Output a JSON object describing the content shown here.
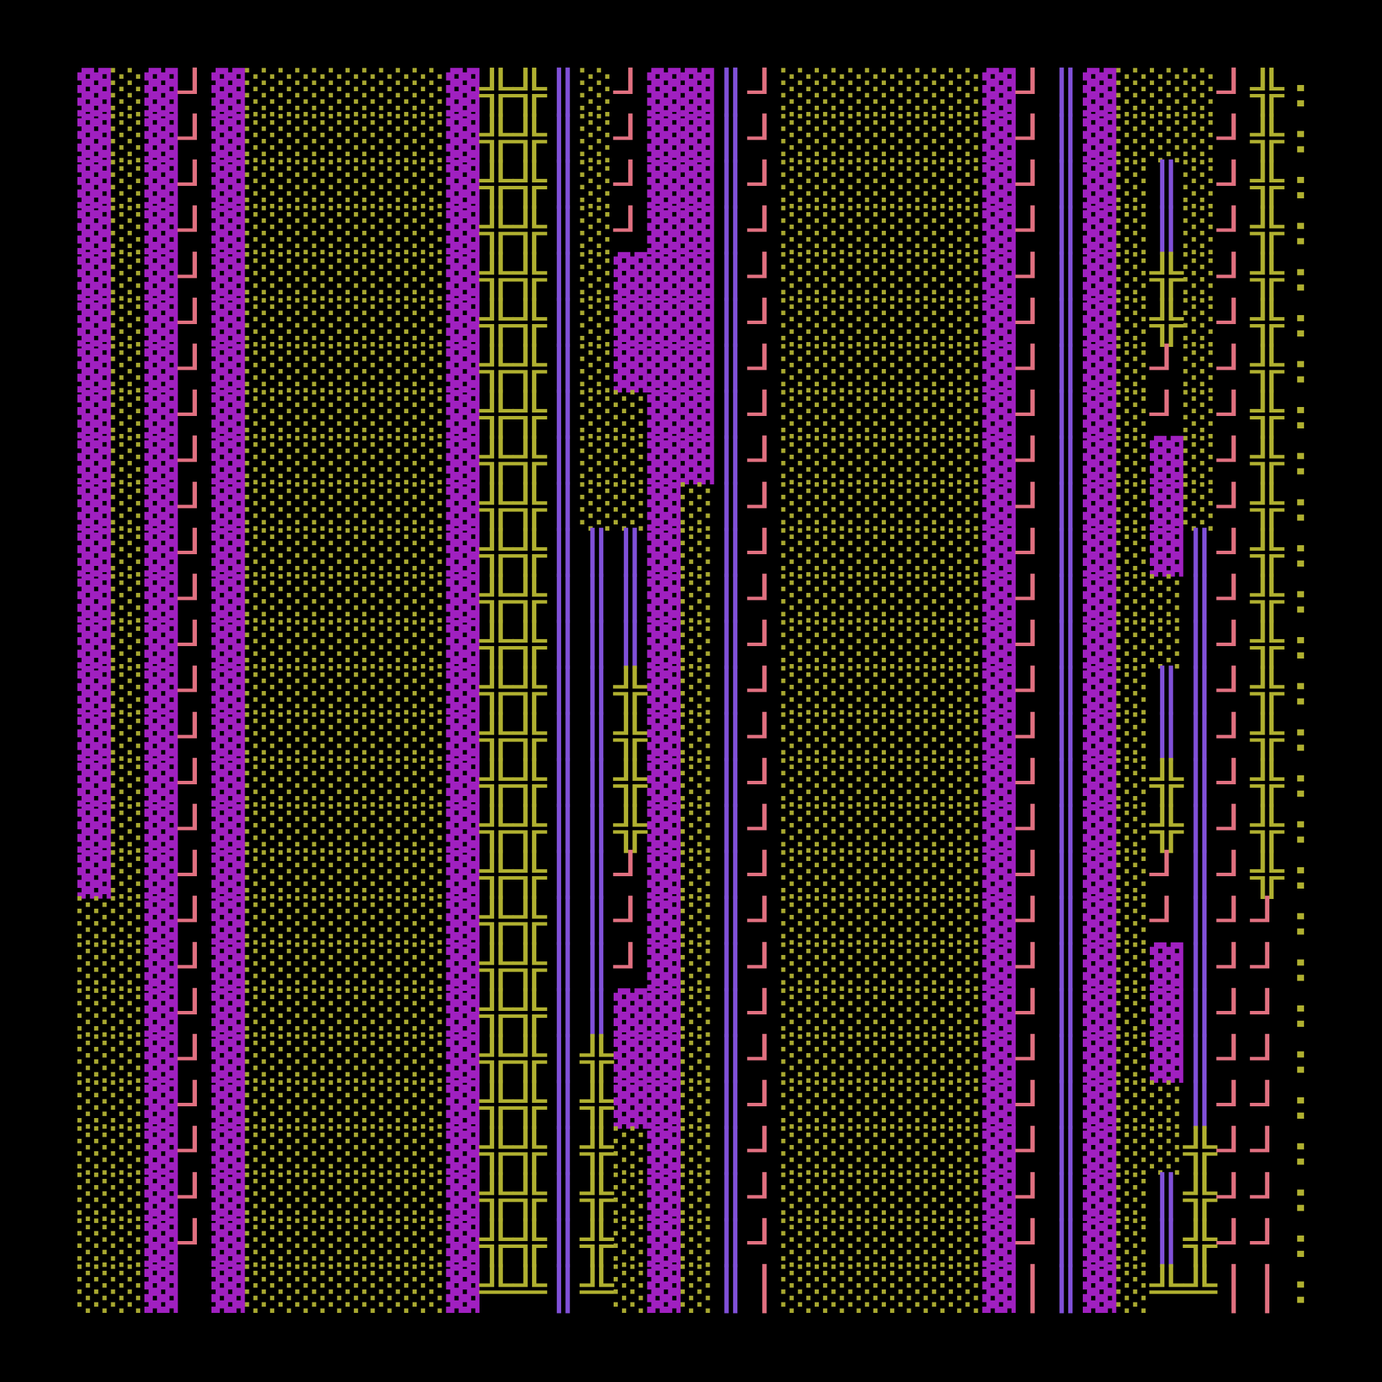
{
  "rows": [
    "▓░▓┘▓░░░░░░▓╬╬║░┘▓▓║┘░░░░░░▓┘║▓░░░┘╬:",
    "▓░▓┘▓░░░░░░▓╬╬║░┘▓▓║┘░░░░░░▓┘║▓░░░┘╬:",
    "▓░▓┘▓░░░░░░▓╬╬║░┘▓▓║┘░░░░░░▓┘║▓░║░┘╬:",
    "▓░▓┘▓░░░░░░▓╬╬║░┘▓▓║┘░░░░░░▓┘║▓░║░┘╬:",
    "▓░▓┘▓░░░░░░▓╬╬║░▓▓▓║┘░░░░░░▓┘║▓░╬░┘╬:",
    "▓░▓┘▓░░░░░░▓╬╬║░▓▓▓║┘░░░░░░▓┘║▓░╬░┘╬:",
    "▓░▓┘▓░░░░░░▓╬╬║░▓▓▓║┘░░░░░░▓┘║▓░┘░┘╬:",
    "▓░▓┘▓░░░░░░▓╬╬║░░▓▓║┘░░░░░░▓┘║▓░┘░┘╬:",
    "▓░▓┘▓░░░░░░▓╬╬║░░▓▓║┘░░░░░░▓┘║▓░▓░┘╬:",
    "▓░▓┘▓░░░░░░▓╬╬║░░▓░║┘░░░░░░▓┘║▓░▓░┘╬:",
    "▓░▓┘▓░░░░░░▓╬╬║║║▓░║┘░░░░░░▓┘║▓░▓║┘╬:",
    "▓░▓┘▓░░░░░░▓╬╬║║║▓░║┘░░░░░░▓┘║▓░░║┘╬:",
    "▓░▓┘▓░░░░░░▓╬╬║║║▓░║┘░░░░░░▓┘║▓░░║┘╬:",
    "▓░▓┘▓░░░░░░▓╬╬║║╬▓░║┘░░░░░░▓┘║▓░║║┘╬:",
    "▓░▓┘▓░░░░░░▓╬╬║║╬▓░║┘░░░░░░▓┘║▓░║║┘╬:",
    "▓░▓┘▓░░░░░░▓╬╬║║╬▓░║┘░░░░░░▓┘║▓░╬║┘╬:",
    "▓░▓┘▓░░░░░░▓╬╬║║╬▓░║┘░░░░░░▓┘║▓░╬║┘╬:",
    "▓░▓┘▓░░░░░░▓╬╬║║┘▓░║┘░░░░░░▓┘║▓░┘║┘╬:",
    "░░▓┘▓░░░░░░▓╬╬║║┘▓░║┘░░░░░░▓┘║▓░┘║┘┘:",
    "░░▓┘▓░░░░░░▓╬╬║║┘▓░║┘░░░░░░▓┘║▓░▓║┘┘:",
    "░░▓┘▓░░░░░░▓╬╬║║▓▓░║┘░░░░░░▓┘║▓░▓║┘┘:",
    "░░▓┘▓░░░░░░▓╬╬║╬▓▓░║┘░░░░░░▓┘║▓░▓║┘┘:",
    "░░▓┘▓░░░░░░▓╬╬║╬▓▓░║┘░░░░░░▓┘║▓░░║┘┘:",
    "░░▓┘▓░░░░░░▓╬╬║╬░▓░║┘░░░░░░▓┘║▓░░╬┘┘:",
    "░░▓┘▓░░░░░░▓╬╬║╬░▓░║┘░░░░░░▓┘║▓░║╬┘┘:",
    "░░▓┘▓░░░░░░▓╬╬║╬░▓░║┘░░░░░░▓┘║▓░║╬┘┘:",
    "░░▓ ▓░░░░░░▓╩╩║╩░▓░║│░░░░░░▓│║▓░╩╩││:"
  ],
  "palette": {
    "▓": "#a020c0",
    "░": "#a8a830",
    "┘": "#e07080",
    "│": "#e07080",
    "║": "#8050d8",
    "╬": "#b0b030",
    "╩": "#b0b030",
    ":": "#b0b030"
  }
}
